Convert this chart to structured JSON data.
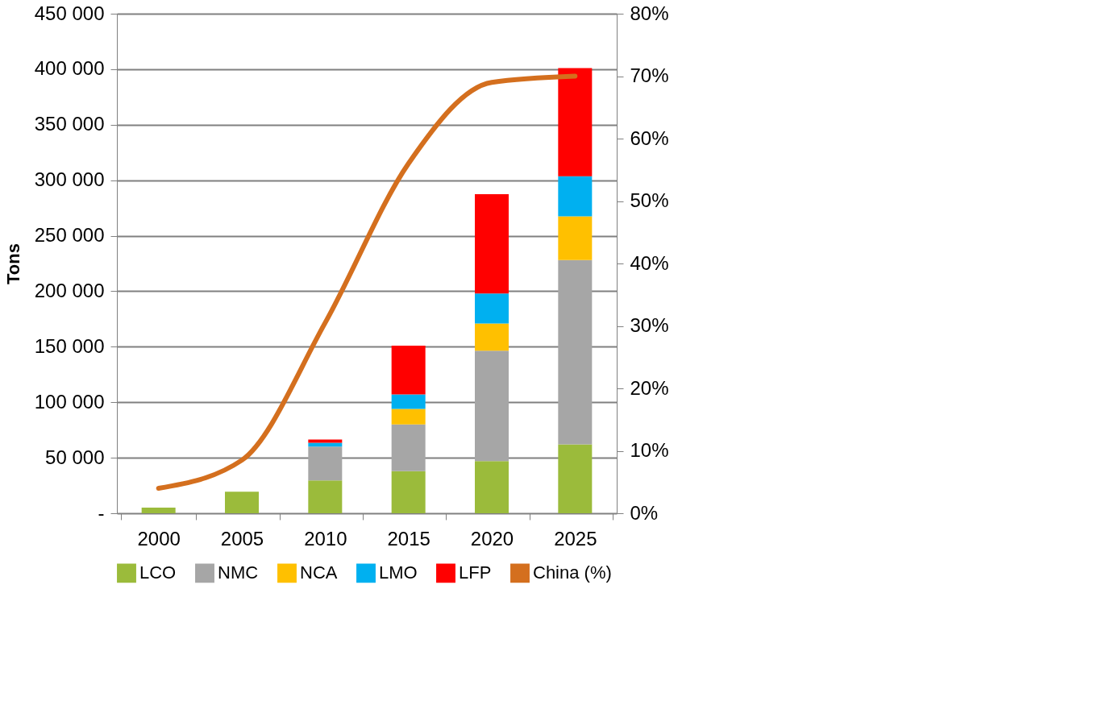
{
  "chart_data": {
    "type": "bar",
    "stacked": true,
    "ylabel": "Tons",
    "categories": [
      "2000",
      "2005",
      "2010",
      "2015",
      "2020",
      "2025"
    ],
    "series": [
      {
        "name": "LCO",
        "color": "#9bbb3b",
        "values": [
          5000,
          19500,
          29500,
          38000,
          47000,
          62000
        ]
      },
      {
        "name": "NMC",
        "color": "#a6a6a6",
        "values": [
          0,
          0,
          30500,
          42000,
          99500,
          166000
        ]
      },
      {
        "name": "NCA",
        "color": "#ffc000",
        "values": [
          0,
          0,
          0,
          14000,
          24500,
          39500
        ]
      },
      {
        "name": "LMO",
        "color": "#00b0f0",
        "values": [
          0,
          0,
          3500,
          13000,
          27000,
          36000
        ]
      },
      {
        "name": "LFP",
        "color": "#ff0000",
        "values": [
          0,
          0,
          3000,
          44000,
          89500,
          97500
        ]
      },
      {
        "name": "China (%)",
        "color": "#d46f1e",
        "type": "line",
        "axis": "y2",
        "values": [
          4,
          8.5,
          30.5,
          56,
          69,
          70
        ]
      }
    ],
    "ylim": [
      0,
      450000
    ],
    "yticks": [
      {
        "value": 0,
        "label": "-"
      },
      {
        "value": 50000,
        "label": "50 000"
      },
      {
        "value": 100000,
        "label": "100 000"
      },
      {
        "value": 150000,
        "label": "150 000"
      },
      {
        "value": 200000,
        "label": "200 000"
      },
      {
        "value": 250000,
        "label": "250 000"
      },
      {
        "value": 300000,
        "label": "300 000"
      },
      {
        "value": 350000,
        "label": "350 000"
      },
      {
        "value": 400000,
        "label": "400 000"
      },
      {
        "value": 450000,
        "label": "450 000"
      }
    ],
    "y2lim": [
      0,
      80
    ],
    "y2ticks": [
      {
        "value": 0,
        "label": "0%"
      },
      {
        "value": 10,
        "label": "10%"
      },
      {
        "value": 20,
        "label": "20%"
      },
      {
        "value": 30,
        "label": "30%"
      },
      {
        "value": 40,
        "label": "40%"
      },
      {
        "value": 50,
        "label": "50%"
      },
      {
        "value": 60,
        "label": "60%"
      },
      {
        "value": 70,
        "label": "70%"
      },
      {
        "value": 80,
        "label": "80%"
      }
    ],
    "grid": "y",
    "legend": "bottom",
    "line_style": "solid"
  }
}
